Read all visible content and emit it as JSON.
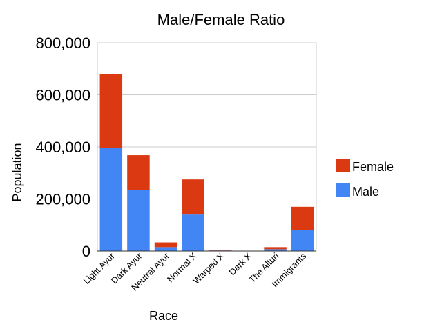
{
  "chart_data": {
    "type": "bar",
    "stacked": true,
    "title": "Male/Female Ratio",
    "xlabel": "Race",
    "ylabel": "Population",
    "ylim": [
      0,
      800000
    ],
    "yticks": [
      "0",
      "200,000",
      "400,000",
      "600,000",
      "800,000"
    ],
    "ytick_values": [
      0,
      200000,
      400000,
      600000,
      800000
    ],
    "grid": true,
    "legend_position": "right",
    "categories": [
      "Light Ayur",
      "Dark Ayur",
      "Neutral Ayur",
      "Normal X",
      "Warped X",
      "Dark X",
      "The Alturi",
      "Immigrants"
    ],
    "series": [
      {
        "name": "Male",
        "color": "#4285F4",
        "values": [
          397000,
          235000,
          15000,
          140000,
          2000,
          500,
          7000,
          80000
        ]
      },
      {
        "name": "Female",
        "color": "#DB3912",
        "values": [
          283000,
          133000,
          18000,
          135000,
          1000,
          500,
          8000,
          90000
        ]
      }
    ],
    "legend": [
      {
        "name": "Female",
        "color": "#DB3912"
      },
      {
        "name": "Male",
        "color": "#4285F4"
      }
    ]
  }
}
